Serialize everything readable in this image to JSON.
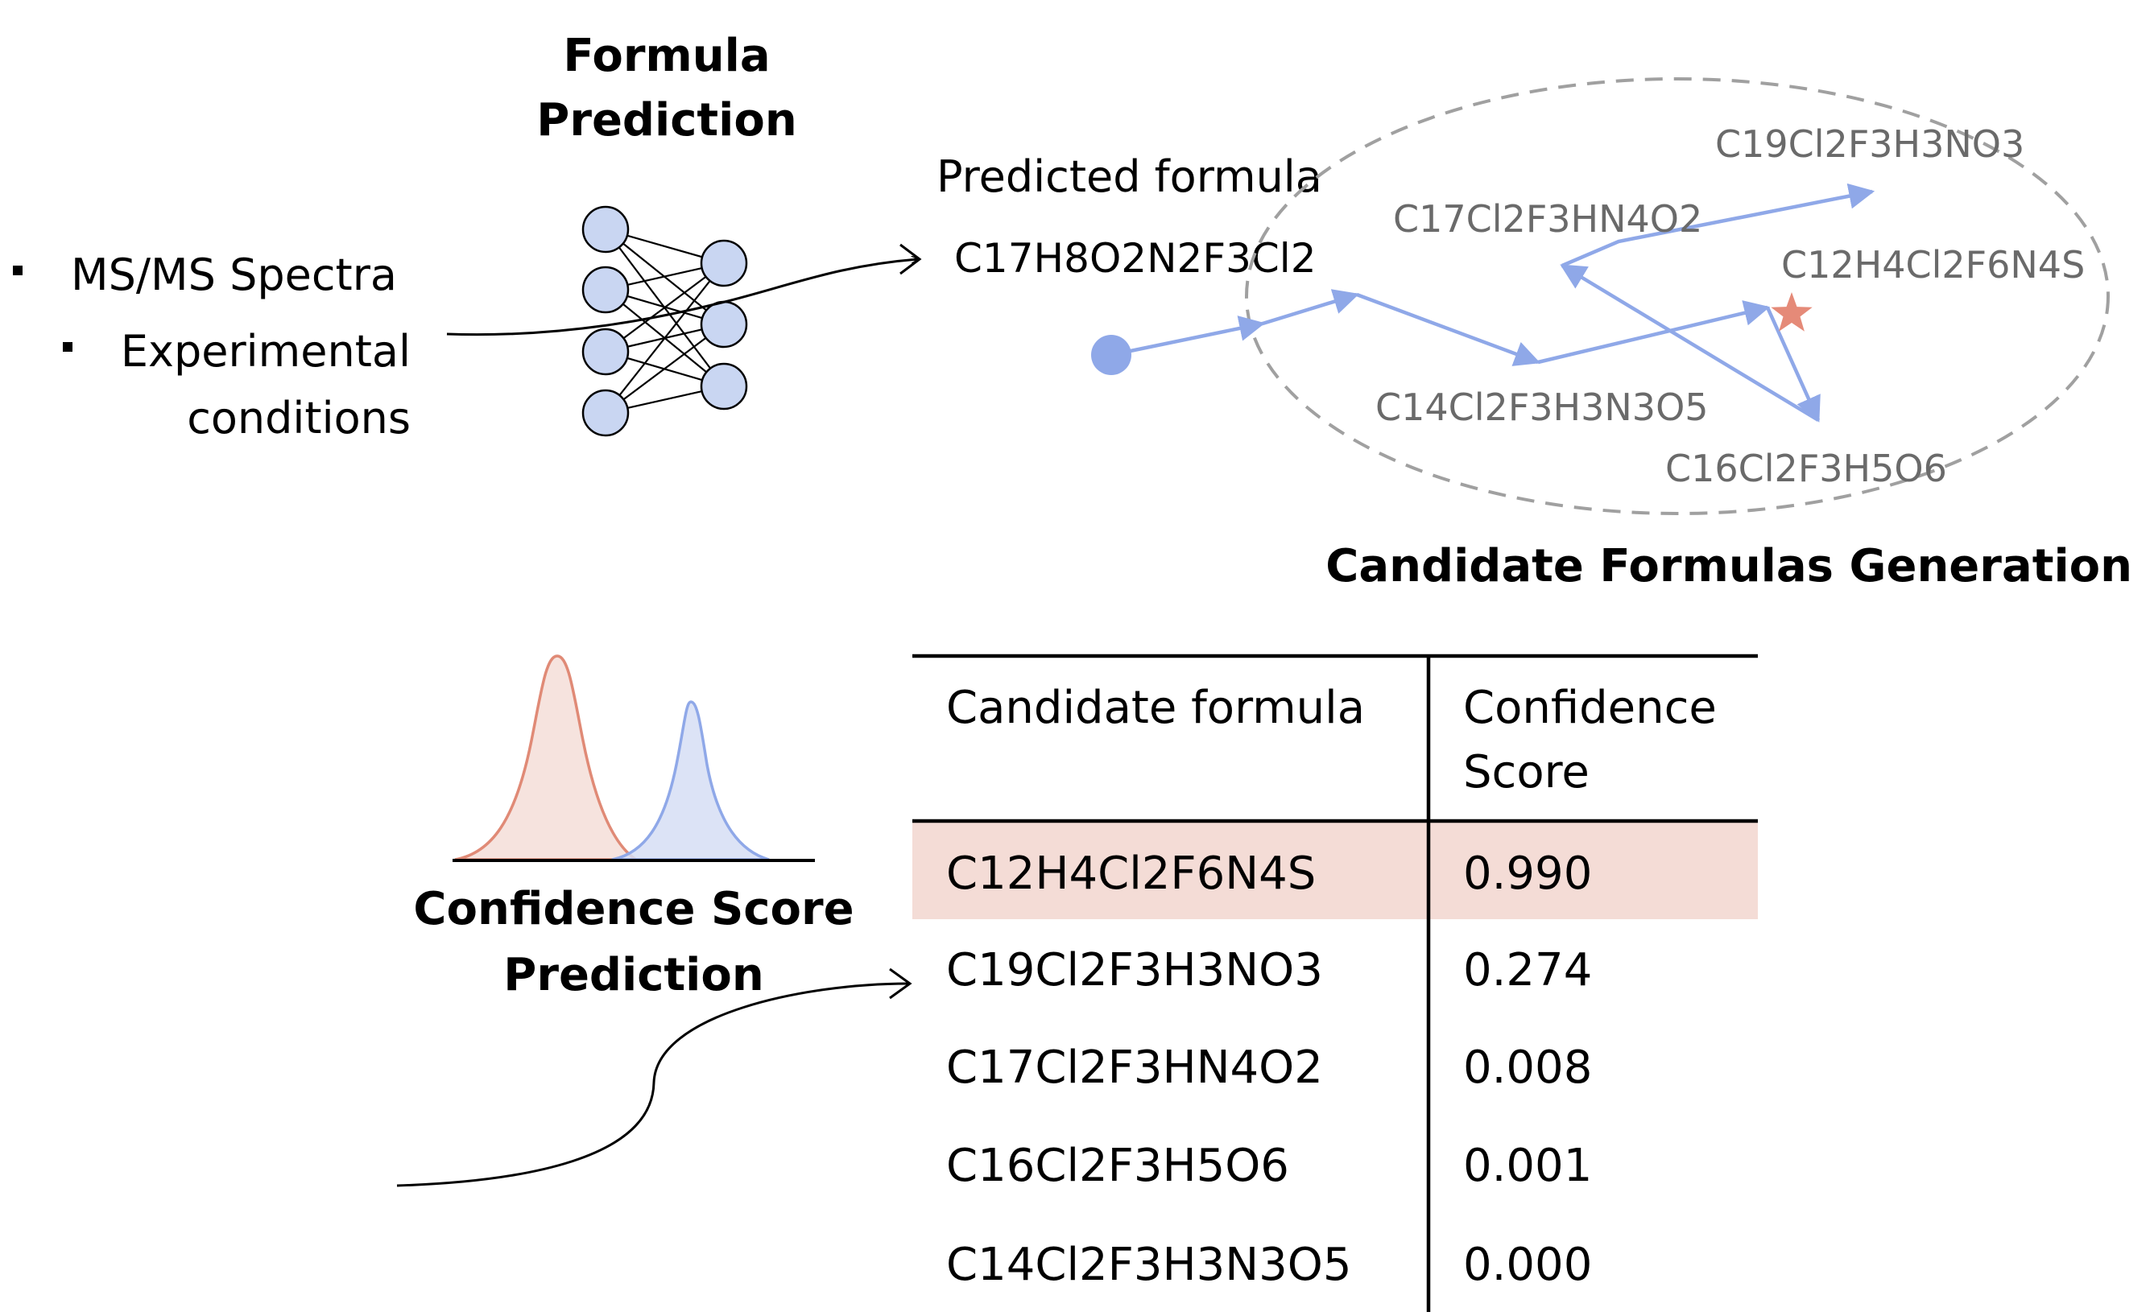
{
  "inputs": {
    "spectra": "MS/MS Spectra",
    "conditions_line1": "Experimental",
    "conditions_line2": "conditions"
  },
  "formula_prediction": {
    "title_line1": "Formula",
    "title_line2": "Prediction"
  },
  "predicted": {
    "label": "Predicted formula",
    "formula": "C17H8O2N2F3Cl2"
  },
  "generation": {
    "title": "Candidate Formulas Generation",
    "candidates": {
      "c19": "C19Cl2F3H3NO3",
      "c17": "C17Cl2F3HN4O2",
      "c12": "C12H4Cl2F6N4S",
      "c14": "C14Cl2F3H3N3O5",
      "c16": "C16Cl2F3H5O6"
    }
  },
  "confidence": {
    "title_line1": "Confidence Score",
    "title_line2": "Prediction"
  },
  "table": {
    "header_formula": "Candidate formula",
    "header_score_line1": "Confidence",
    "header_score_line2": "Score",
    "rows": [
      {
        "formula": "C12H4Cl2F6N4S",
        "score": "0.990",
        "highlight": true
      },
      {
        "formula": "C19Cl2F3H3NO3",
        "score": "0.274",
        "highlight": false
      },
      {
        "formula": "C17Cl2F3HN4O2",
        "score": "0.008",
        "highlight": false
      },
      {
        "formula": "C16Cl2F3H5O6",
        "score": "0.001",
        "highlight": false
      },
      {
        "formula": "C14Cl2F3H3N3O5",
        "score": "0.000",
        "highlight": false
      }
    ]
  },
  "colors": {
    "path_blue": "#8fa8e8",
    "node_fill": "#c9d6f2",
    "highlight_row": "#f4dcd6",
    "star": "#e58a78",
    "dist_red": "#e08a76",
    "dist_blue": "#8fa8e8",
    "candidate_text": "#6a6a6a"
  }
}
